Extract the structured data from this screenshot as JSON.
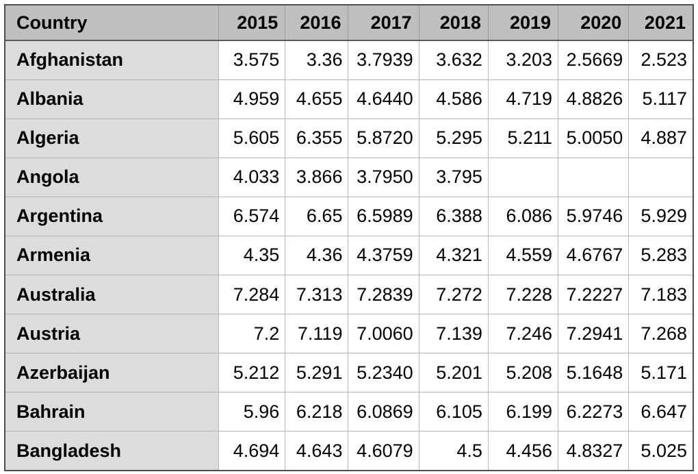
{
  "colors": {
    "header_bg": "#bfbfbf",
    "country_column_bg": "#dcdcdc",
    "cell_bg": "#ffffff",
    "outer_border": "#4d4d4d",
    "cell_border": "#b5b5b5",
    "text": "#000000"
  },
  "table": {
    "columns": [
      "Country",
      "2015",
      "2016",
      "2017",
      "2018",
      "2019",
      "2020",
      "2021"
    ],
    "rows": [
      {
        "country": "Afghanistan",
        "values": [
          "3.575",
          "3.36",
          "3.7939",
          "3.632",
          "3.203",
          "2.5669",
          "2.523"
        ]
      },
      {
        "country": "Albania",
        "values": [
          "4.959",
          "4.655",
          "4.6440",
          "4.586",
          "4.719",
          "4.8826",
          "5.117"
        ]
      },
      {
        "country": "Algeria",
        "values": [
          "5.605",
          "6.355",
          "5.8720",
          "5.295",
          "5.211",
          "5.0050",
          "4.887"
        ]
      },
      {
        "country": "Angola",
        "values": [
          "4.033",
          "3.866",
          "3.7950",
          "3.795",
          "",
          "",
          ""
        ]
      },
      {
        "country": "Argentina",
        "values": [
          "6.574",
          "6.65",
          "6.5989",
          "6.388",
          "6.086",
          "5.9746",
          "5.929"
        ]
      },
      {
        "country": "Armenia",
        "values": [
          "4.35",
          "4.36",
          "4.3759",
          "4.321",
          "4.559",
          "4.6767",
          "5.283"
        ]
      },
      {
        "country": "Australia",
        "values": [
          "7.284",
          "7.313",
          "7.2839",
          "7.272",
          "7.228",
          "7.2227",
          "7.183"
        ]
      },
      {
        "country": "Austria",
        "values": [
          "7.2",
          "7.119",
          "7.0060",
          "7.139",
          "7.246",
          "7.2941",
          "7.268"
        ]
      },
      {
        "country": "Azerbaijan",
        "values": [
          "5.212",
          "5.291",
          "5.2340",
          "5.201",
          "5.208",
          "5.1648",
          "5.171"
        ]
      },
      {
        "country": "Bahrain",
        "values": [
          "5.96",
          "6.218",
          "6.0869",
          "6.105",
          "6.199",
          "6.2273",
          "6.647"
        ]
      },
      {
        "country": "Bangladesh",
        "values": [
          "4.694",
          "4.643",
          "4.6079",
          "4.5",
          "4.456",
          "4.8327",
          "5.025"
        ]
      }
    ]
  }
}
